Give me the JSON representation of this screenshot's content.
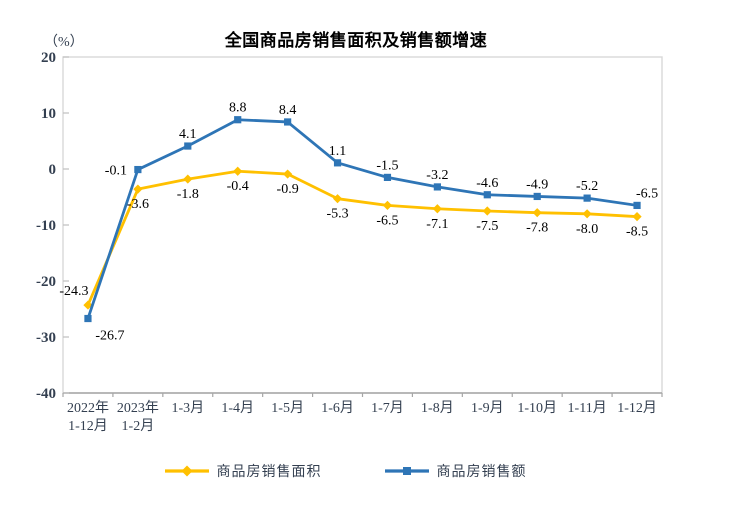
{
  "chart_data": {
    "type": "line",
    "title": "全国商品房销售面积及销售额增速",
    "unit_label": "（%）",
    "categories": [
      [
        "2022年",
        "1-12月"
      ],
      [
        "2023年",
        "1-2月"
      ],
      [
        "1-3月"
      ],
      [
        "1-4月"
      ],
      [
        "1-5月"
      ],
      [
        "1-6月"
      ],
      [
        "1-7月"
      ],
      [
        "1-8月"
      ],
      [
        "1-9月"
      ],
      [
        "1-10月"
      ],
      [
        "1-11月"
      ],
      [
        "1-12月"
      ]
    ],
    "series": [
      {
        "name": "商品房销售面积",
        "color": "#FFC000",
        "marker": "diamond",
        "values": [
          -24.3,
          -3.6,
          -1.8,
          -0.4,
          -0.9,
          -5.3,
          -6.5,
          -7.1,
          -7.5,
          -7.8,
          -8.0,
          -8.5
        ]
      },
      {
        "name": "商品房销售额",
        "color": "#2E75B6",
        "marker": "square",
        "values": [
          -26.7,
          -0.1,
          4.1,
          8.8,
          8.4,
          1.1,
          -1.5,
          -3.2,
          -4.6,
          -4.9,
          -5.2,
          -6.5
        ]
      }
    ],
    "ylim": [
      -40,
      20
    ],
    "yticks": [
      20,
      10,
      0,
      -10,
      -20,
      -30,
      -40
    ],
    "grid": false,
    "legend_position": "bottom",
    "colors": {
      "plot_border": "#D9D9D9",
      "x_axis_line": "#A6A6A6",
      "tick_mark": "#BFBFBF",
      "axis_text": "#333F50",
      "data_label": "#000000",
      "title_text": "#000000"
    }
  }
}
